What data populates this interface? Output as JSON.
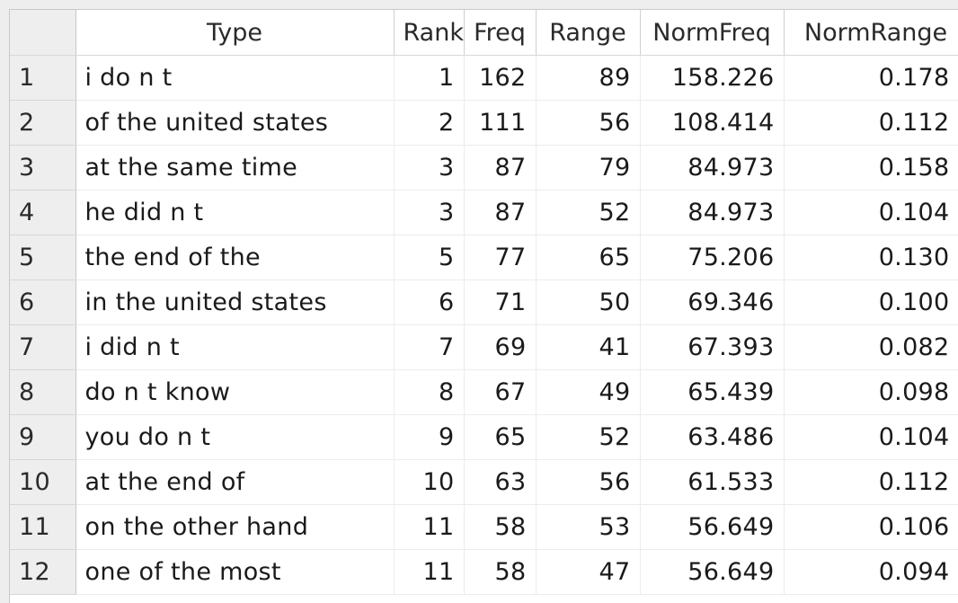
{
  "table": {
    "columns": [
      "Type",
      "Rank",
      "Freq",
      "Range",
      "NormFreq",
      "NormRange"
    ],
    "rows": [
      {
        "index": "1",
        "type": "i do n t",
        "rank": "1",
        "freq": "162",
        "range": "89",
        "normfreq": "158.226",
        "normrange": "0.178"
      },
      {
        "index": "2",
        "type": "of the united states",
        "rank": "2",
        "freq": "111",
        "range": "56",
        "normfreq": "108.414",
        "normrange": "0.112"
      },
      {
        "index": "3",
        "type": "at the same time",
        "rank": "3",
        "freq": "87",
        "range": "79",
        "normfreq": "84.973",
        "normrange": "0.158"
      },
      {
        "index": "4",
        "type": "he did n t",
        "rank": "3",
        "freq": "87",
        "range": "52",
        "normfreq": "84.973",
        "normrange": "0.104"
      },
      {
        "index": "5",
        "type": "the end of the",
        "rank": "5",
        "freq": "77",
        "range": "65",
        "normfreq": "75.206",
        "normrange": "0.130"
      },
      {
        "index": "6",
        "type": "in the united states",
        "rank": "6",
        "freq": "71",
        "range": "50",
        "normfreq": "69.346",
        "normrange": "0.100"
      },
      {
        "index": "7",
        "type": "i did n t",
        "rank": "7",
        "freq": "69",
        "range": "41",
        "normfreq": "67.393",
        "normrange": "0.082"
      },
      {
        "index": "8",
        "type": "do n t know",
        "rank": "8",
        "freq": "67",
        "range": "49",
        "normfreq": "65.439",
        "normrange": "0.098"
      },
      {
        "index": "9",
        "type": "you do n t",
        "rank": "9",
        "freq": "65",
        "range": "52",
        "normfreq": "63.486",
        "normrange": "0.104"
      },
      {
        "index": "10",
        "type": "at the end of",
        "rank": "10",
        "freq": "63",
        "range": "56",
        "normfreq": "61.533",
        "normrange": "0.112"
      },
      {
        "index": "11",
        "type": "on the other hand",
        "rank": "11",
        "freq": "58",
        "range": "53",
        "normfreq": "56.649",
        "normrange": "0.106"
      },
      {
        "index": "12",
        "type": "one of the most",
        "rank": "11",
        "freq": "58",
        "range": "47",
        "normfreq": "56.649",
        "normrange": "0.094"
      }
    ]
  }
}
